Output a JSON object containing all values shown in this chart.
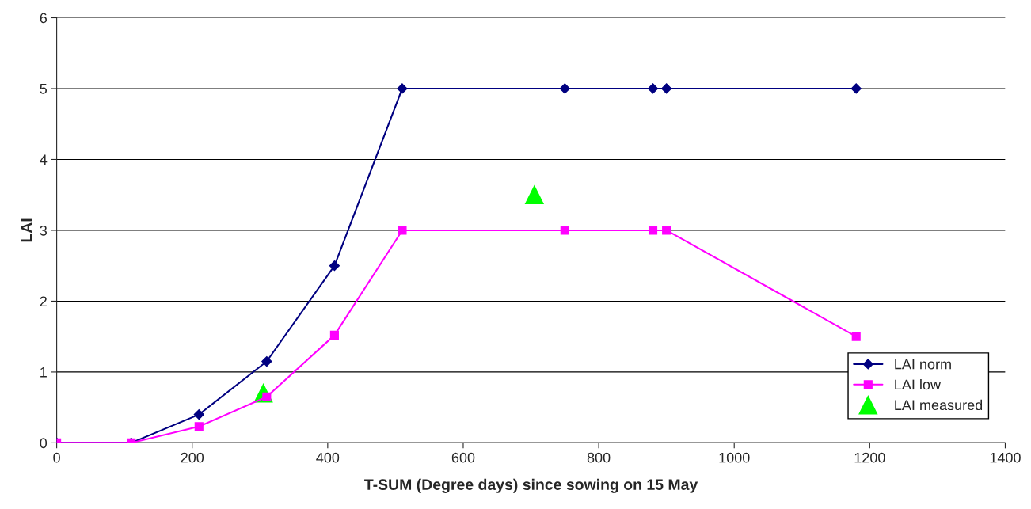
{
  "chart_data": {
    "type": "line",
    "xlabel": "T-SUM (Degree days) since sowing on 15 May",
    "ylabel": "LAI",
    "xlim": [
      0,
      1400
    ],
    "xticks": [
      0,
      200,
      400,
      600,
      800,
      1000,
      1200,
      1400
    ],
    "ylim": [
      0,
      6
    ],
    "yticks": [
      0,
      1,
      2,
      3,
      4,
      5,
      6
    ],
    "grid": "y",
    "legend": "lower right",
    "series": [
      {
        "name": "LAI norm",
        "color": "#000080",
        "marker": "diamond",
        "x": [
          0,
          110,
          210,
          310,
          410,
          510,
          750,
          880,
          900,
          1180
        ],
        "values": [
          0,
          0,
          0.4,
          1.15,
          2.5,
          5,
          5,
          5,
          5,
          5
        ]
      },
      {
        "name": "LAI low",
        "color": "#ff00ff",
        "marker": "square",
        "x": [
          0,
          110,
          210,
          310,
          410,
          510,
          750,
          880,
          900,
          1180
        ],
        "values": [
          0,
          0,
          0.23,
          0.65,
          1.52,
          3,
          3,
          3,
          3,
          1.5
        ]
      },
      {
        "name": "LAI measured",
        "type": "scatter",
        "color": "#00ff00",
        "marker": "triangle",
        "x": [
          305,
          705
        ],
        "values": [
          0.7,
          3.5
        ]
      }
    ]
  }
}
